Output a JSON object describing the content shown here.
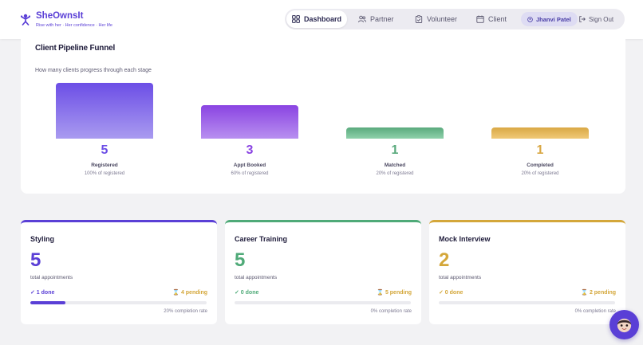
{
  "brand": {
    "name": "SheOwnsIt",
    "tagline": "Rise with her · Her confidence · Her life"
  },
  "nav": {
    "items": [
      {
        "label": "Dashboard",
        "icon": "dashboard-icon",
        "active": true
      },
      {
        "label": "Partner",
        "icon": "partner-icon",
        "active": false
      },
      {
        "label": "Volunteer",
        "icon": "volunteer-icon",
        "active": false
      },
      {
        "label": "Client",
        "icon": "client-icon",
        "active": false
      }
    ],
    "user": "Jhanvi Patel",
    "signout": "Sign Out"
  },
  "funnel": {
    "title": "Client Pipeline Funnel",
    "subtitle": "How many clients progress through each stage",
    "max": 5,
    "stages": [
      {
        "count": "5",
        "value": 5,
        "label": "Registered",
        "pct": "100% of registered",
        "color": "#6c4ee6",
        "color2": "#a99bf0"
      },
      {
        "count": "3",
        "value": 3,
        "label": "Appt Booked",
        "pct": "60% of registered",
        "color": "#8a44e2",
        "color2": "#b88ff0"
      },
      {
        "count": "1",
        "value": 1,
        "label": "Matched",
        "pct": "20% of registered",
        "color": "#5aaa7d",
        "color2": "#8fd1ab"
      },
      {
        "count": "1",
        "value": 1,
        "label": "Completed",
        "pct": "20% of registered",
        "color": "#d9a845",
        "color2": "#f0c978"
      }
    ]
  },
  "services": [
    {
      "name": "Styling",
      "total": "5",
      "total_label": "total appointments",
      "done": "✓ 1 done",
      "pending": "4 pending",
      "rate": "20% completion rate",
      "progress": 0.2,
      "color": "#5a3fd6"
    },
    {
      "name": "Career Training",
      "total": "5",
      "total_label": "total appointments",
      "done": "✓ 0 done",
      "pending": "5 pending",
      "rate": "0% completion rate",
      "progress": 0,
      "color": "#4faa78"
    },
    {
      "name": "Mock Interview",
      "total": "2",
      "total_label": "total appointments",
      "done": "✓ 0 done",
      "pending": "2 pending",
      "rate": "0% completion rate",
      "progress": 0,
      "color": "#d4a73a"
    }
  ]
}
